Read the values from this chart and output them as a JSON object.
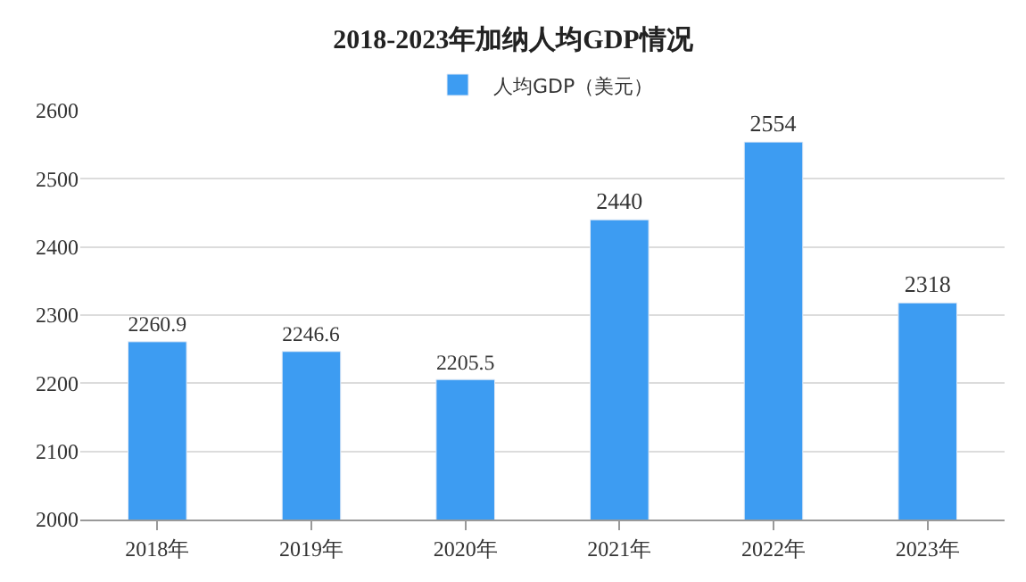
{
  "chart_data": {
    "type": "bar",
    "title": "2018-2023年加纳人均GDP情况",
    "categories": [
      "2018年",
      "2019年",
      "2020年",
      "2021年",
      "2022年",
      "2023年"
    ],
    "series": [
      {
        "name": "人均GDP（美元）",
        "color": "#3d9cf2",
        "values": [
          2260.9,
          2246.6,
          2205.5,
          2440,
          2554,
          2318
        ]
      }
    ],
    "ylim": [
      2000,
      2600
    ],
    "yticks": [
      2000,
      2100,
      2200,
      2300,
      2400,
      2500,
      2600
    ],
    "grid": "y",
    "legend": "top",
    "data_labels": true
  }
}
